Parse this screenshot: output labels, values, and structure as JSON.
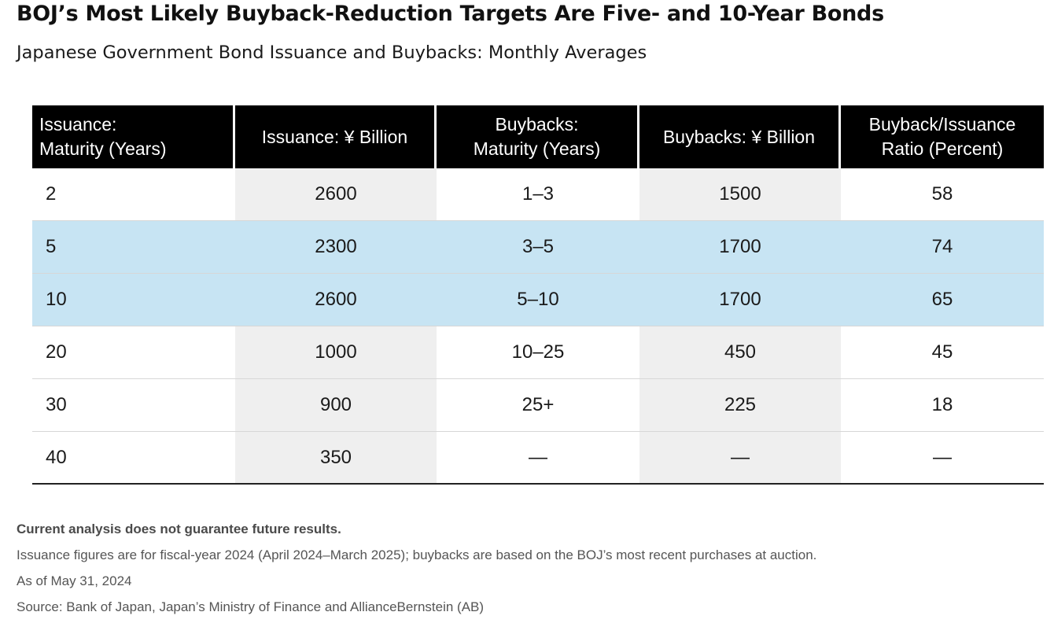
{
  "title": "BOJ’s Most Likely Buyback-Reduction Targets Are Five- and 10-Year Bonds",
  "subtitle": "Japanese Government Bond Issuance and Buybacks: Monthly Averages",
  "table": {
    "headers": [
      "Issuance:\nMaturity (Years)",
      "Issuance: ¥ Billion",
      "Buybacks:\nMaturity (Years)",
      "Buybacks: ¥ Billion",
      "Buyback/Issuance\nRatio (Percent)"
    ],
    "rows": [
      {
        "cells": [
          "2",
          "2600",
          "1–3",
          "1500",
          "58"
        ],
        "highlighted": false
      },
      {
        "cells": [
          "5",
          "2300",
          "3–5",
          "1700",
          "74"
        ],
        "highlighted": true
      },
      {
        "cells": [
          "10",
          "2600",
          "5–10",
          "1700",
          "65"
        ],
        "highlighted": true
      },
      {
        "cells": [
          "20",
          "1000",
          "10–25",
          "450",
          "45"
        ],
        "highlighted": false
      },
      {
        "cells": [
          "30",
          "900",
          "25+",
          "225",
          "18"
        ],
        "highlighted": false
      },
      {
        "cells": [
          "40",
          "350",
          "—",
          "—",
          "—"
        ],
        "highlighted": false
      }
    ]
  },
  "notes": [
    "Current analysis does not guarantee future results.",
    "Issuance figures are for fiscal-year 2024 (April 2024–March 2025); buybacks are based on the BOJ’s most recent purchases at auction.",
    "As of May 31, 2024",
    "Source: Bank of Japan, Japan’s Ministry of Finance and AllianceBernstein (AB)"
  ],
  "colors": {
    "header_background": "#000000",
    "header_text": "#ffffff",
    "highlight_row": "#c7e4f3",
    "shaded_column": "#efefef"
  },
  "chart_data": {
    "type": "table",
    "title": "BOJ’s Most Likely Buyback-Reduction Targets Are Five- and 10-Year Bonds",
    "subtitle": "Japanese Government Bond Issuance and Buybacks: Monthly Averages",
    "columns": [
      "Issuance: Maturity (Years)",
      "Issuance: ¥ Billion",
      "Buybacks: Maturity (Years)",
      "Buybacks: ¥ Billion",
      "Buyback/Issuance Ratio (Percent)"
    ],
    "rows": [
      [
        "2",
        "2600",
        "1–3",
        "1500",
        "58"
      ],
      [
        "5",
        "2300",
        "3–5",
        "1700",
        "74"
      ],
      [
        "10",
        "2600",
        "5–10",
        "1700",
        "65"
      ],
      [
        "20",
        "1000",
        "10–25",
        "450",
        "45"
      ],
      [
        "30",
        "900",
        "25+",
        "225",
        "18"
      ],
      [
        "40",
        "350",
        "—",
        "—",
        "—"
      ]
    ],
    "highlighted_rows": [
      1,
      2
    ]
  }
}
